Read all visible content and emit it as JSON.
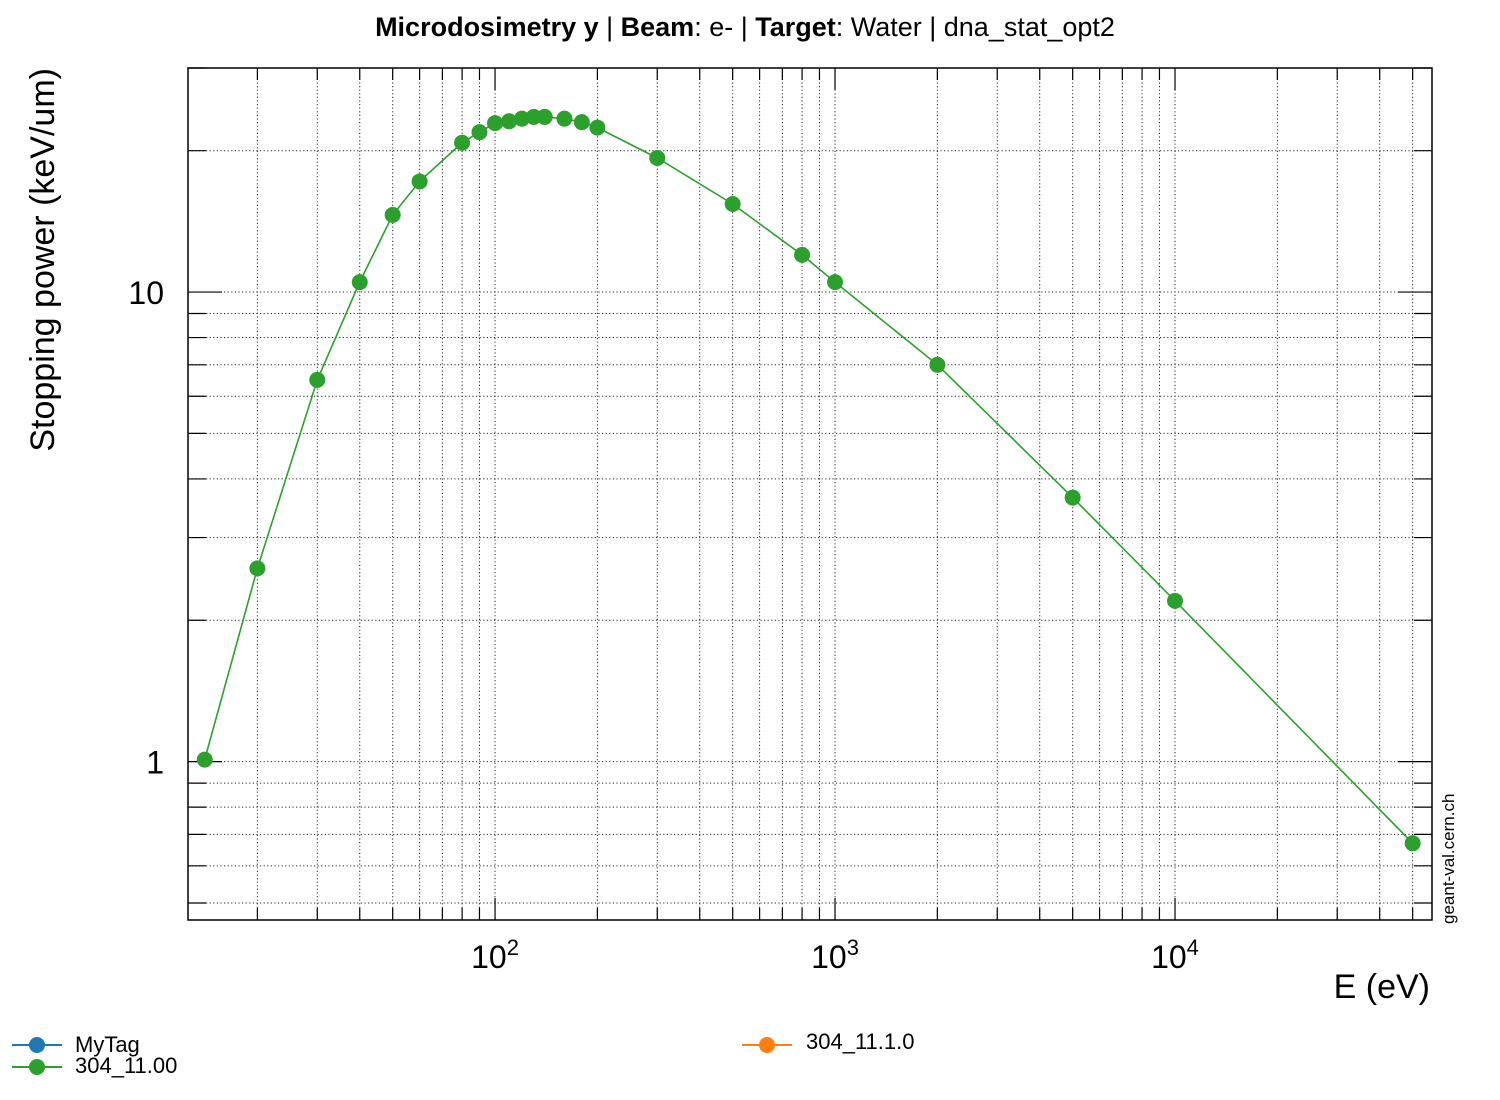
{
  "title": {
    "part1_bold": "Microdosimetry y ",
    "part2": " | ",
    "part3_bold": "Beam",
    "part4": ": e- | ",
    "part5_bold": "Target",
    "part6": ": Water | dna_stat_opt2"
  },
  "watermark": "geant-val.cern.ch",
  "legend": [
    {
      "label": "MyTag",
      "color": "#1f77b4"
    },
    {
      "label": "304_11.00",
      "color": "#2ca02c"
    },
    {
      "label": "304_11.1.0",
      "color": "#ff7f0e"
    }
  ],
  "chart_data": {
    "type": "line",
    "title": "Microdosimetry y  | Beam: e- | Target: Water | dna_stat_opt2",
    "xlabel": "E (eV)",
    "ylabel": "Stopping power (keV/um)",
    "xscale": "log",
    "yscale": "log",
    "xlim": [
      12.5,
      57000
    ],
    "ylim": [
      0.46,
      30
    ],
    "grid": true,
    "legend_position": "bottom",
    "x_ticks": [
      {
        "value": 100,
        "base": "10",
        "exp": "2"
      },
      {
        "value": 1000,
        "base": "10",
        "exp": "3"
      },
      {
        "value": 10000,
        "base": "10",
        "exp": "4"
      }
    ],
    "y_ticks": [
      {
        "value": 1,
        "label": "1"
      },
      {
        "value": 10,
        "label": "10"
      }
    ],
    "series": [
      {
        "name": "304_11.00",
        "color": "#2ca02c",
        "x": [
          14,
          20,
          30,
          40,
          50,
          60,
          80,
          90,
          100,
          110,
          120,
          130,
          140,
          160,
          180,
          200,
          300,
          500,
          800,
          1000,
          2000,
          5000,
          10000,
          50000
        ],
        "y": [
          1.01,
          2.58,
          6.5,
          10.5,
          14.6,
          17.2,
          20.8,
          21.9,
          22.9,
          23.1,
          23.4,
          23.6,
          23.6,
          23.4,
          23.0,
          22.4,
          19.3,
          15.4,
          12.0,
          10.5,
          7.0,
          3.65,
          2.2,
          0.67
        ]
      }
    ]
  }
}
